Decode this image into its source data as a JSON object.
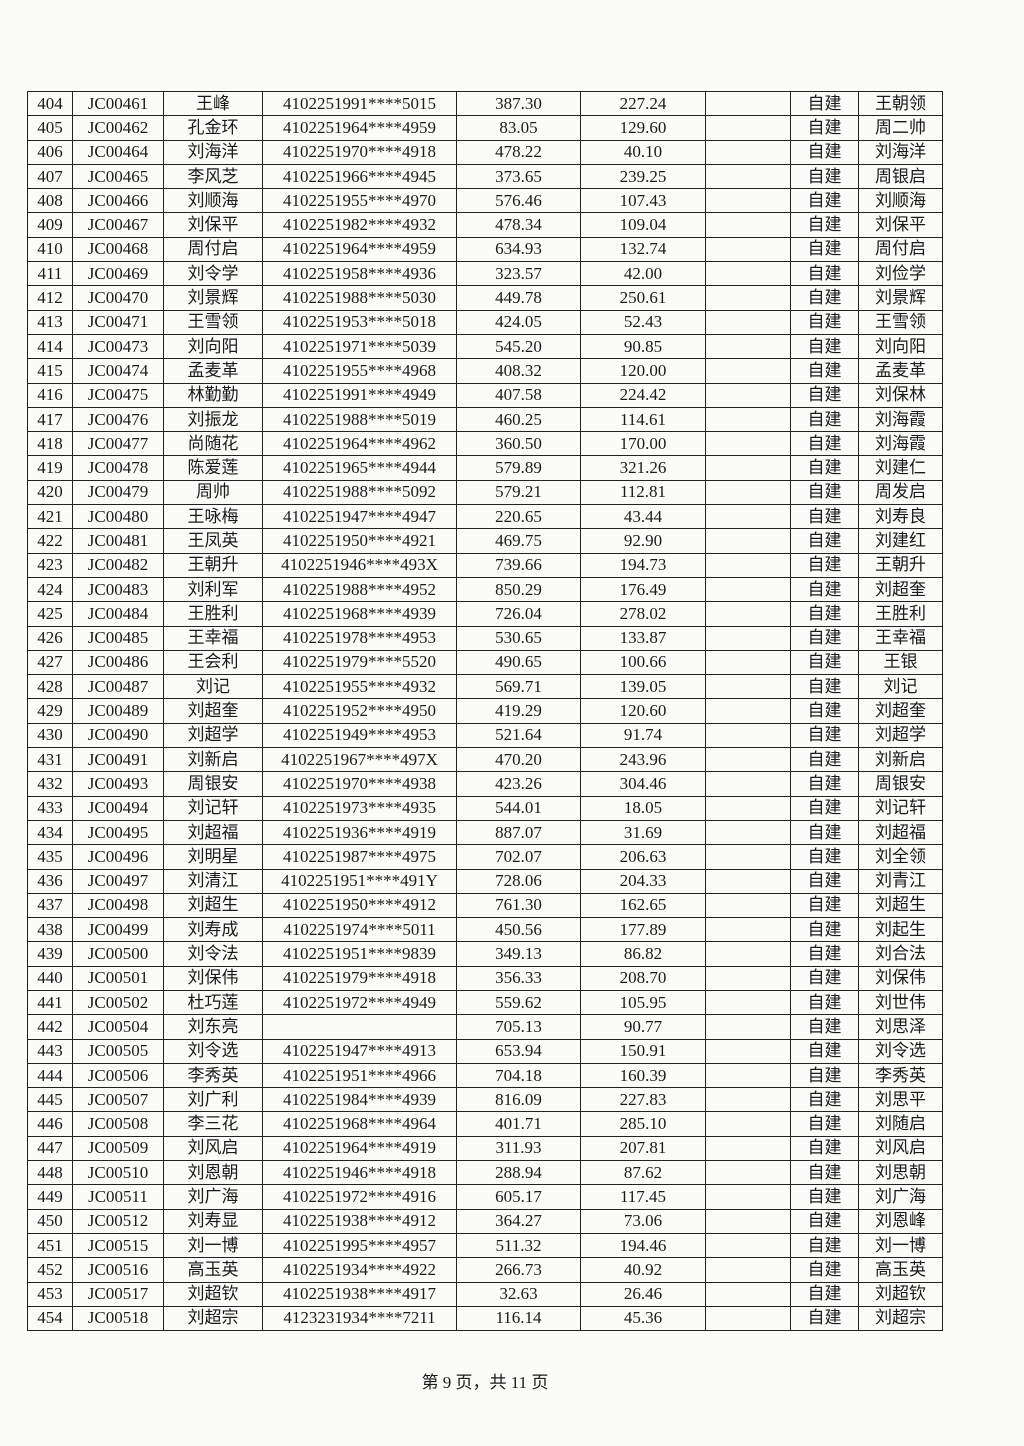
{
  "table": {
    "rows": [
      [
        "404",
        "JC00461",
        "王峰",
        "4102251991****5015",
        "387.30",
        "227.24",
        null,
        "自建",
        "王朝领"
      ],
      [
        "405",
        "JC00462",
        "孔金环",
        "4102251964****4959",
        "83.05",
        "129.60",
        null,
        "自建",
        "周二帅"
      ],
      [
        "406",
        "JC00464",
        "刘海洋",
        "4102251970****4918",
        "478.22",
        "40.10",
        null,
        "自建",
        "刘海洋"
      ],
      [
        "407",
        "JC00465",
        "李风芝",
        "4102251966****4945",
        "373.65",
        "239.25",
        null,
        "自建",
        "周银启"
      ],
      [
        "408",
        "JC00466",
        "刘顺海",
        "4102251955****4970",
        "576.46",
        "107.43",
        null,
        "自建",
        "刘顺海"
      ],
      [
        "409",
        "JC00467",
        "刘保平",
        "4102251982****4932",
        "478.34",
        "109.04",
        null,
        "自建",
        "刘保平"
      ],
      [
        "410",
        "JC00468",
        "周付启",
        "4102251964****4959",
        "634.93",
        "132.74",
        null,
        "自建",
        "周付启"
      ],
      [
        "411",
        "JC00469",
        "刘令学",
        "4102251958****4936",
        "323.57",
        "42.00",
        null,
        "自建",
        "刘俭学"
      ],
      [
        "412",
        "JC00470",
        "刘景辉",
        "4102251988****5030",
        "449.78",
        "250.61",
        null,
        "自建",
        "刘景辉"
      ],
      [
        "413",
        "JC00471",
        "王雪领",
        "4102251953****5018",
        "424.05",
        "52.43",
        null,
        "自建",
        "王雪领"
      ],
      [
        "414",
        "JC00473",
        "刘向阳",
        "4102251971****5039",
        "545.20",
        "90.85",
        null,
        "自建",
        "刘向阳"
      ],
      [
        "415",
        "JC00474",
        "孟麦革",
        "4102251955****4968",
        "408.32",
        "120.00",
        null,
        "自建",
        "孟麦革"
      ],
      [
        "416",
        "JC00475",
        "林勤勤",
        "4102251991****4949",
        "407.58",
        "224.42",
        null,
        "自建",
        "刘保林"
      ],
      [
        "417",
        "JC00476",
        "刘振龙",
        "4102251988****5019",
        "460.25",
        "114.61",
        null,
        "自建",
        "刘海霞"
      ],
      [
        "418",
        "JC00477",
        "尚随花",
        "4102251964****4962",
        "360.50",
        "170.00",
        null,
        "自建",
        "刘海霞"
      ],
      [
        "419",
        "JC00478",
        "陈爱莲",
        "4102251965****4944",
        "579.89",
        "321.26",
        null,
        "自建",
        "刘建仁"
      ],
      [
        "420",
        "JC00479",
        "周帅",
        "4102251988****5092",
        "579.21",
        "112.81",
        null,
        "自建",
        "周发启"
      ],
      [
        "421",
        "JC00480",
        "王咏梅",
        "4102251947****4947",
        "220.65",
        "43.44",
        null,
        "自建",
        "刘寿良"
      ],
      [
        "422",
        "JC00481",
        "王凤英",
        "4102251950****4921",
        "469.75",
        "92.90",
        null,
        "自建",
        "刘建红"
      ],
      [
        "423",
        "JC00482",
        "王朝升",
        "4102251946****493X",
        "739.66",
        "194.73",
        null,
        "自建",
        "王朝升"
      ],
      [
        "424",
        "JC00483",
        "刘利军",
        "4102251988****4952",
        "850.29",
        "176.49",
        null,
        "自建",
        "刘超奎"
      ],
      [
        "425",
        "JC00484",
        "王胜利",
        "4102251968****4939",
        "726.04",
        "278.02",
        null,
        "自建",
        "王胜利"
      ],
      [
        "426",
        "JC00485",
        "王幸福",
        "4102251978****4953",
        "530.65",
        "133.87",
        null,
        "自建",
        "王幸福"
      ],
      [
        "427",
        "JC00486",
        "王会利",
        "4102251979****5520",
        "490.65",
        "100.66",
        null,
        "自建",
        "王银"
      ],
      [
        "428",
        "JC00487",
        "刘记",
        "4102251955****4932",
        "569.71",
        "139.05",
        null,
        "自建",
        "刘记"
      ],
      [
        "429",
        "JC00489",
        "刘超奎",
        "4102251952****4950",
        "419.29",
        "120.60",
        null,
        "自建",
        "刘超奎"
      ],
      [
        "430",
        "JC00490",
        "刘超学",
        "4102251949****4953",
        "521.64",
        "91.74",
        null,
        "自建",
        "刘超学"
      ],
      [
        "431",
        "JC00491",
        "刘新启",
        "4102251967****497X",
        "470.20",
        "243.96",
        null,
        "自建",
        "刘新启"
      ],
      [
        "432",
        "JC00493",
        "周银安",
        "4102251970****4938",
        "423.26",
        "304.46",
        null,
        "自建",
        "周银安"
      ],
      [
        "433",
        "JC00494",
        "刘记轩",
        "4102251973****4935",
        "544.01",
        "18.05",
        null,
        "自建",
        "刘记轩"
      ],
      [
        "434",
        "JC00495",
        "刘超福",
        "4102251936****4919",
        "887.07",
        "31.69",
        null,
        "自建",
        "刘超福"
      ],
      [
        "435",
        "JC00496",
        "刘明星",
        "4102251987****4975",
        "702.07",
        "206.63",
        null,
        "自建",
        "刘全领"
      ],
      [
        "436",
        "JC00497",
        "刘清江",
        "4102251951****491Y",
        "728.06",
        "204.33",
        null,
        "自建",
        "刘青江"
      ],
      [
        "437",
        "JC00498",
        "刘超生",
        "4102251950****4912",
        "761.30",
        "162.65",
        null,
        "自建",
        "刘超生"
      ],
      [
        "438",
        "JC00499",
        "刘寿成",
        "4102251974****5011",
        "450.56",
        "177.89",
        null,
        "自建",
        "刘起生"
      ],
      [
        "439",
        "JC00500",
        "刘令法",
        "4102251951****9839",
        "349.13",
        "86.82",
        null,
        "自建",
        "刘合法"
      ],
      [
        "440",
        "JC00501",
        "刘保伟",
        "4102251979****4918",
        "356.33",
        "208.70",
        null,
        "自建",
        "刘保伟"
      ],
      [
        "441",
        "JC00502",
        "杜巧莲",
        "4102251972****4949",
        "559.62",
        "105.95",
        null,
        "自建",
        "刘世伟"
      ],
      [
        "442",
        "JC00504",
        "刘东亮",
        null,
        "705.13",
        "90.77",
        null,
        "自建",
        "刘思泽"
      ],
      [
        "443",
        "JC00505",
        "刘令选",
        "4102251947****4913",
        "653.94",
        "150.91",
        null,
        "自建",
        "刘令选"
      ],
      [
        "444",
        "JC00506",
        "李秀英",
        "4102251951****4966",
        "704.18",
        "160.39",
        null,
        "自建",
        "李秀英"
      ],
      [
        "445",
        "JC00507",
        "刘广利",
        "4102251984****4939",
        "816.09",
        "227.83",
        null,
        "自建",
        "刘思平"
      ],
      [
        "446",
        "JC00508",
        "李三花",
        "4102251968****4964",
        "401.71",
        "285.10",
        null,
        "自建",
        "刘随启"
      ],
      [
        "447",
        "JC00509",
        "刘风启",
        "4102251964****4919",
        "311.93",
        "207.81",
        null,
        "自建",
        "刘风启"
      ],
      [
        "448",
        "JC00510",
        "刘恩朝",
        "4102251946****4918",
        "288.94",
        "87.62",
        null,
        "自建",
        "刘思朝"
      ],
      [
        "449",
        "JC00511",
        "刘广海",
        "4102251972****4916",
        "605.17",
        "117.45",
        null,
        "自建",
        "刘广海"
      ],
      [
        "450",
        "JC00512",
        "刘寿显",
        "4102251938****4912",
        "364.27",
        "73.06",
        null,
        "自建",
        "刘恩峰"
      ],
      [
        "451",
        "JC00515",
        "刘一博",
        "4102251995****4957",
        "511.32",
        "194.46",
        null,
        "自建",
        "刘一博"
      ],
      [
        "452",
        "JC00516",
        "高玉英",
        "4102251934****4922",
        "266.73",
        "40.92",
        null,
        "自建",
        "高玉英"
      ],
      [
        "453",
        "JC00517",
        "刘超钦",
        "4102251938****4917",
        "32.63",
        "26.46",
        null,
        "自建",
        "刘超钦"
      ],
      [
        "454",
        "JC00518",
        "刘超宗",
        "4123231934****7211",
        "116.14",
        "45.36",
        null,
        "自建",
        "刘超宗"
      ]
    ]
  },
  "footer": {
    "page": "第 9 页，共 11 页"
  }
}
